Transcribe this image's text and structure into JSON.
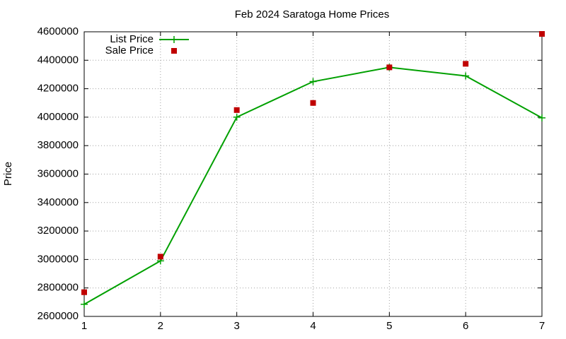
{
  "chart_data": {
    "type": "line",
    "title": "Feb 2024 Saratoga Home Prices",
    "y_label": "Price",
    "x": [
      1,
      2,
      3,
      4,
      5,
      6,
      7
    ],
    "series": [
      {
        "name": "List Price",
        "color": "#00a000",
        "mode": "lines+markers",
        "marker": "plus",
        "values": [
          2685000,
          2990000,
          4000000,
          4250000,
          4350000,
          4290000,
          3995000
        ]
      },
      {
        "name": "Sale Price",
        "color": "#c00000",
        "mode": "markers",
        "marker": "square",
        "values": [
          2770000,
          3020000,
          4050000,
          4100000,
          4350000,
          4375000,
          4585000
        ]
      }
    ],
    "xlim": [
      1,
      7
    ],
    "xticks": [
      1,
      2,
      3,
      4,
      5,
      6,
      7
    ],
    "ylim": [
      2600000,
      4600000
    ],
    "yticks": [
      2600000,
      2800000,
      3000000,
      3200000,
      3400000,
      3600000,
      3800000,
      4000000,
      4200000,
      4400000,
      4600000
    ],
    "grid": true,
    "legend": "top-left"
  }
}
